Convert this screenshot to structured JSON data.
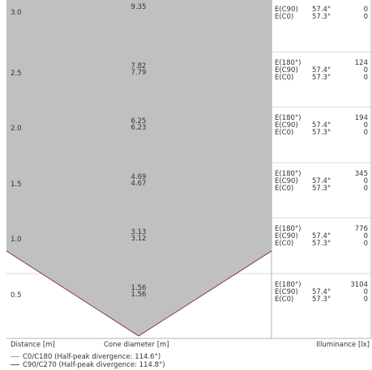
{
  "chart_data": {
    "type": "cone-diagram",
    "rows": [
      {
        "distance": "3.0",
        "diameters": [
          "9.35"
        ],
        "e180_label": "",
        "e180_value": "",
        "e_c90_label": "E(C90)",
        "e_c90_angle": "57.4°",
        "e_c90_value": "0",
        "e_c0_label": "E(C0)",
        "e_c0_angle": "57.3°",
        "e_c0_value": "0"
      },
      {
        "distance": "2.5",
        "diameters": [
          "7.82",
          "7.79"
        ],
        "e180_label": "E(180°)",
        "e180_value": "124",
        "e_c90_label": "E(C90)",
        "e_c90_angle": "57.4°",
        "e_c90_value": "0",
        "e_c0_label": "E(C0)",
        "e_c0_angle": "57.3°",
        "e_c0_value": "0"
      },
      {
        "distance": "2.0",
        "diameters": [
          "6.25",
          "6.23"
        ],
        "e180_label": "E(180°)",
        "e180_value": "194",
        "e_c90_label": "E(C90)",
        "e_c90_angle": "57.4°",
        "e_c90_value": "0",
        "e_c0_label": "E(C0)",
        "e_c0_angle": "57.3°",
        "e_c0_value": "0"
      },
      {
        "distance": "1.5",
        "diameters": [
          "4.69",
          "4.67"
        ],
        "e180_label": "E(180°)",
        "e180_value": "345",
        "e_c90_label": "E(C90)",
        "e_c90_angle": "57.4°",
        "e_c90_value": "0",
        "e_c0_label": "E(C0)",
        "e_c0_angle": "57.3°",
        "e_c0_value": "0"
      },
      {
        "distance": "1.0",
        "diameters": [
          "3.13",
          "3.12"
        ],
        "e180_label": "E(180°)",
        "e180_value": "776",
        "e_c90_label": "E(C90)",
        "e_c90_angle": "57.4°",
        "e_c90_value": "0",
        "e_c0_label": "E(C0)",
        "e_c0_angle": "57.3°",
        "e_c0_value": "0"
      },
      {
        "distance": "0.5",
        "diameters": [
          "1.56",
          "1.56"
        ],
        "e180_label": "E(180°)",
        "e180_value": "3104",
        "e_c90_label": "E(C90)",
        "e_c90_angle": "57.4°",
        "e_c90_value": "0",
        "e_c0_label": "E(C0)",
        "e_c0_angle": "57.3°",
        "e_c0_value": "0"
      }
    ],
    "axis_labels": {
      "distance": "Distance [m]",
      "cone_diameter": "Cone diameter [m]",
      "illuminance": "Illuminance [lx]"
    },
    "legend": [
      {
        "label": "C0/C180 (Half-peak divergence: 114.6°)",
        "color": "#d9896a"
      },
      {
        "label": "C90/C270 (Half-peak divergence: 114.8°)",
        "color": "#555555"
      }
    ],
    "colors": {
      "cone_fill": "#c0c0c0",
      "cone_stroke": "#7a2020",
      "grid": "#d8d8d8",
      "frame": "#b0b0b0"
    }
  }
}
